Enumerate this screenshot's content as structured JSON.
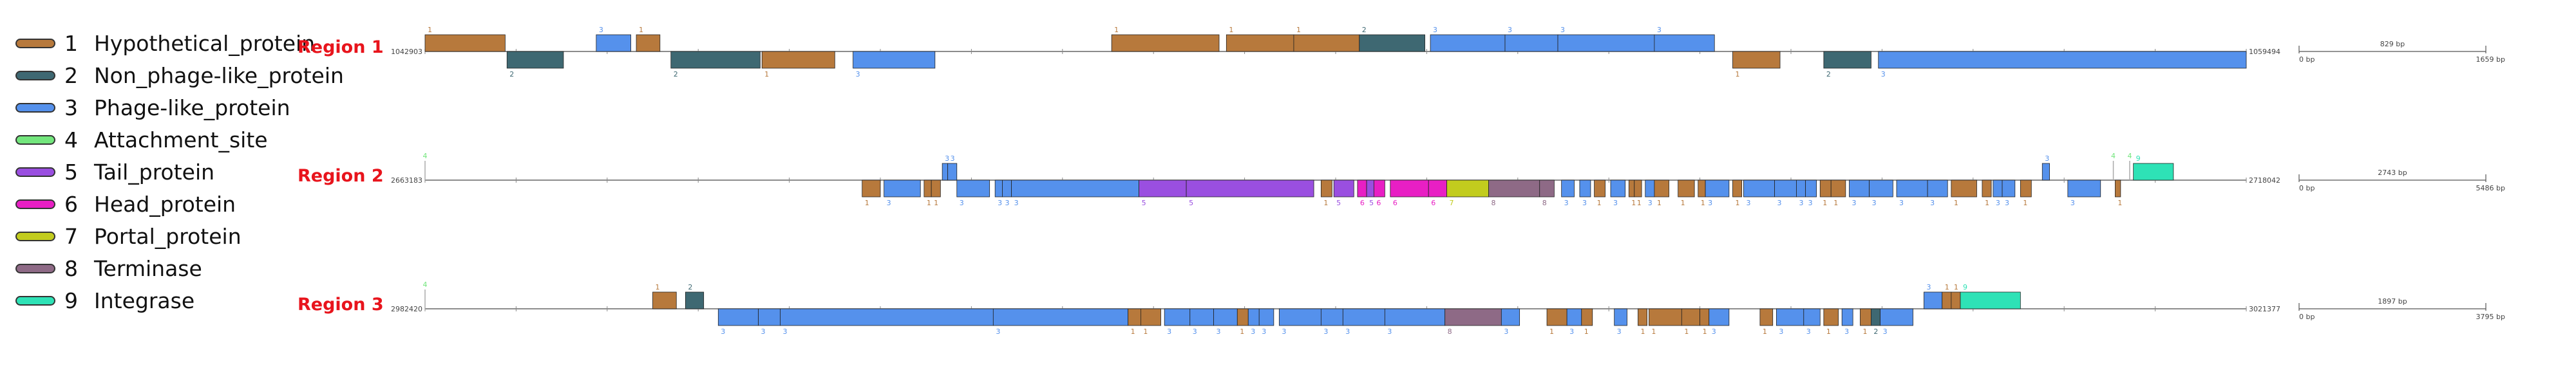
{
  "legend": [
    {
      "num": "1",
      "label": "Hypothetical_protein",
      "color": "#b7793c"
    },
    {
      "num": "2",
      "label": "Non_phage-like_protein",
      "color": "#3e6872"
    },
    {
      "num": "3",
      "label": "Phage-like_protein",
      "color": "#5591ec"
    },
    {
      "num": "4",
      "label": "Attachment_site",
      "color": "#73e67d"
    },
    {
      "num": "5",
      "label": "Tail_protein",
      "color": "#9a4fe0"
    },
    {
      "num": "6",
      "label": "Head_protein",
      "color": "#e81fc4"
    },
    {
      "num": "7",
      "label": "Portal_protein",
      "color": "#c2cc1e"
    },
    {
      "num": "8",
      "label": "Terminase",
      "color": "#8e6a86"
    },
    {
      "num": "9",
      "label": "Integrase",
      "color": "#2ee2b6"
    }
  ],
  "regions": [
    {
      "name": "Region 1",
      "start_label": "1042903",
      "end_label": "1059494",
      "scale_label": "829 bp",
      "scale_start": "0 bp",
      "scale_end": "1659 bp",
      "genes": [
        {
          "t": 1,
          "s": 0.0,
          "e": 0.044,
          "d": 1
        },
        {
          "t": 2,
          "s": 0.045,
          "e": 0.076,
          "d": -1
        },
        {
          "t": 3,
          "s": 0.094,
          "e": 0.113,
          "d": 1
        },
        {
          "t": 1,
          "s": 0.116,
          "e": 0.129,
          "d": 1
        },
        {
          "t": 2,
          "s": 0.135,
          "e": 0.184,
          "d": -1
        },
        {
          "t": 1,
          "s": 0.185,
          "e": 0.225,
          "d": -1
        },
        {
          "t": 3,
          "s": 0.235,
          "e": 0.28,
          "d": -1
        },
        {
          "t": 1,
          "s": 0.377,
          "e": 0.436,
          "d": 1
        },
        {
          "t": 1,
          "s": 0.44,
          "e": 0.477,
          "d": 1
        },
        {
          "t": 1,
          "s": 0.477,
          "e": 0.513,
          "d": 1
        },
        {
          "t": 2,
          "s": 0.513,
          "e": 0.549,
          "d": 1
        },
        {
          "t": 3,
          "s": 0.552,
          "e": 0.593,
          "d": 1
        },
        {
          "t": 3,
          "s": 0.593,
          "e": 0.622,
          "d": 1
        },
        {
          "t": 3,
          "s": 0.622,
          "e": 0.675,
          "d": 1
        },
        {
          "t": 3,
          "s": 0.675,
          "e": 0.708,
          "d": 1
        },
        {
          "t": 1,
          "s": 0.718,
          "e": 0.744,
          "d": -1
        },
        {
          "t": 2,
          "s": 0.768,
          "e": 0.794,
          "d": -1
        },
        {
          "t": 3,
          "s": 0.798,
          "e": 1.0,
          "d": -1
        }
      ]
    },
    {
      "name": "Region 2",
      "start_label": "2663183",
      "end_label": "2718042",
      "scale_label": "2743 bp",
      "scale_start": "0 bp",
      "scale_end": "5486 bp",
      "genes": [
        {
          "t": 4,
          "s": 0.0,
          "e": 0.001,
          "d": 1
        },
        {
          "t": 1,
          "s": 0.24,
          "e": 0.25,
          "d": -1
        },
        {
          "t": 3,
          "s": 0.252,
          "e": 0.272,
          "d": -1
        },
        {
          "t": 1,
          "s": 0.274,
          "e": 0.278,
          "d": -1
        },
        {
          "t": 1,
          "s": 0.278,
          "e": 0.283,
          "d": -1
        },
        {
          "t": 3,
          "s": 0.284,
          "e": 0.287,
          "d": 1
        },
        {
          "t": 3,
          "s": 0.287,
          "e": 0.292,
          "d": 1
        },
        {
          "t": 3,
          "s": 0.292,
          "e": 0.31,
          "d": -1
        },
        {
          "t": 3,
          "s": 0.313,
          "e": 0.317,
          "d": -1
        },
        {
          "t": 3,
          "s": 0.317,
          "e": 0.322,
          "d": -1
        },
        {
          "t": 3,
          "s": 0.322,
          "e": 0.392,
          "d": -1
        },
        {
          "t": 5,
          "s": 0.392,
          "e": 0.418,
          "d": -1
        },
        {
          "t": 5,
          "s": 0.418,
          "e": 0.488,
          "d": -1
        },
        {
          "t": 1,
          "s": 0.492,
          "e": 0.498,
          "d": -1
        },
        {
          "t": 5,
          "s": 0.499,
          "e": 0.51,
          "d": -1
        },
        {
          "t": 6,
          "s": 0.512,
          "e": 0.517,
          "d": -1
        },
        {
          "t": 5,
          "s": 0.517,
          "e": 0.521,
          "d": -1
        },
        {
          "t": 6,
          "s": 0.521,
          "e": 0.527,
          "d": -1
        },
        {
          "t": 6,
          "s": 0.53,
          "e": 0.551,
          "d": -1
        },
        {
          "t": 6,
          "s": 0.551,
          "e": 0.561,
          "d": -1
        },
        {
          "t": 7,
          "s": 0.561,
          "e": 0.584,
          "d": -1
        },
        {
          "t": 8,
          "s": 0.584,
          "e": 0.612,
          "d": -1
        },
        {
          "t": 8,
          "s": 0.612,
          "e": 0.62,
          "d": -1
        },
        {
          "t": 3,
          "s": 0.624,
          "e": 0.631,
          "d": -1
        },
        {
          "t": 3,
          "s": 0.634,
          "e": 0.64,
          "d": -1
        },
        {
          "t": 1,
          "s": 0.642,
          "e": 0.648,
          "d": -1
        },
        {
          "t": 3,
          "s": 0.651,
          "e": 0.659,
          "d": -1
        },
        {
          "t": 1,
          "s": 0.661,
          "e": 0.664,
          "d": -1
        },
        {
          "t": 1,
          "s": 0.664,
          "e": 0.668,
          "d": -1
        },
        {
          "t": 3,
          "s": 0.67,
          "e": 0.675,
          "d": -1
        },
        {
          "t": 1,
          "s": 0.675,
          "e": 0.683,
          "d": -1
        },
        {
          "t": 1,
          "s": 0.688,
          "e": 0.697,
          "d": -1
        },
        {
          "t": 1,
          "s": 0.699,
          "e": 0.703,
          "d": -1
        },
        {
          "t": 3,
          "s": 0.703,
          "e": 0.716,
          "d": -1
        },
        {
          "t": 1,
          "s": 0.718,
          "e": 0.723,
          "d": -1
        },
        {
          "t": 3,
          "s": 0.724,
          "e": 0.741,
          "d": -1
        },
        {
          "t": 3,
          "s": 0.741,
          "e": 0.753,
          "d": -1
        },
        {
          "t": 3,
          "s": 0.753,
          "e": 0.758,
          "d": -1
        },
        {
          "t": 3,
          "s": 0.758,
          "e": 0.764,
          "d": -1
        },
        {
          "t": 1,
          "s": 0.766,
          "e": 0.772,
          "d": -1
        },
        {
          "t": 1,
          "s": 0.772,
          "e": 0.78,
          "d": -1
        },
        {
          "t": 3,
          "s": 0.782,
          "e": 0.793,
          "d": -1
        },
        {
          "t": 3,
          "s": 0.793,
          "e": 0.806,
          "d": -1
        },
        {
          "t": 3,
          "s": 0.808,
          "e": 0.825,
          "d": -1
        },
        {
          "t": 3,
          "s": 0.825,
          "e": 0.836,
          "d": -1
        },
        {
          "t": 1,
          "s": 0.838,
          "e": 0.852,
          "d": -1
        },
        {
          "t": 1,
          "s": 0.855,
          "e": 0.86,
          "d": -1
        },
        {
          "t": 3,
          "s": 0.861,
          "e": 0.866,
          "d": -1
        },
        {
          "t": 3,
          "s": 0.866,
          "e": 0.873,
          "d": -1
        },
        {
          "t": 1,
          "s": 0.876,
          "e": 0.882,
          "d": -1
        },
        {
          "t": 3,
          "s": 0.888,
          "e": 0.892,
          "d": 1
        },
        {
          "t": 3,
          "s": 0.902,
          "e": 0.92,
          "d": -1
        },
        {
          "t": 4,
          "s": 0.927,
          "e": 0.928,
          "d": 1
        },
        {
          "t": 1,
          "s": 0.928,
          "e": 0.931,
          "d": -1
        },
        {
          "t": 4,
          "s": 0.936,
          "e": 0.937,
          "d": 1
        },
        {
          "t": 9,
          "s": 0.938,
          "e": 0.96,
          "d": 1
        }
      ]
    },
    {
      "name": "Region 3",
      "start_label": "2982420",
      "end_label": "3021377",
      "scale_label": "1897 bp",
      "scale_start": "0 bp",
      "scale_end": "3795 bp",
      "genes": [
        {
          "t": 4,
          "s": 0.0,
          "e": 0.001,
          "d": 1
        },
        {
          "t": 1,
          "s": 0.125,
          "e": 0.138,
          "d": 1
        },
        {
          "t": 2,
          "s": 0.143,
          "e": 0.153,
          "d": 1
        },
        {
          "t": 3,
          "s": 0.161,
          "e": 0.183,
          "d": -1
        },
        {
          "t": 3,
          "s": 0.183,
          "e": 0.195,
          "d": -1
        },
        {
          "t": 3,
          "s": 0.195,
          "e": 0.312,
          "d": -1
        },
        {
          "t": 3,
          "s": 0.312,
          "e": 0.386,
          "d": -1
        },
        {
          "t": 1,
          "s": 0.386,
          "e": 0.393,
          "d": -1
        },
        {
          "t": 1,
          "s": 0.393,
          "e": 0.404,
          "d": -1
        },
        {
          "t": 3,
          "s": 0.406,
          "e": 0.42,
          "d": -1
        },
        {
          "t": 3,
          "s": 0.42,
          "e": 0.433,
          "d": -1
        },
        {
          "t": 3,
          "s": 0.433,
          "e": 0.446,
          "d": -1
        },
        {
          "t": 1,
          "s": 0.446,
          "e": 0.452,
          "d": -1
        },
        {
          "t": 3,
          "s": 0.452,
          "e": 0.458,
          "d": -1
        },
        {
          "t": 3,
          "s": 0.458,
          "e": 0.466,
          "d": -1
        },
        {
          "t": 3,
          "s": 0.469,
          "e": 0.492,
          "d": -1
        },
        {
          "t": 3,
          "s": 0.492,
          "e": 0.504,
          "d": -1
        },
        {
          "t": 3,
          "s": 0.504,
          "e": 0.527,
          "d": -1
        },
        {
          "t": 3,
          "s": 0.527,
          "e": 0.56,
          "d": -1
        },
        {
          "t": 8,
          "s": 0.56,
          "e": 0.591,
          "d": -1
        },
        {
          "t": 3,
          "s": 0.591,
          "e": 0.601,
          "d": -1
        },
        {
          "t": 1,
          "s": 0.616,
          "e": 0.627,
          "d": -1
        },
        {
          "t": 3,
          "s": 0.627,
          "e": 0.635,
          "d": -1
        },
        {
          "t": 1,
          "s": 0.635,
          "e": 0.641,
          "d": -1
        },
        {
          "t": 3,
          "s": 0.653,
          "e": 0.66,
          "d": -1
        },
        {
          "t": 1,
          "s": 0.666,
          "e": 0.671,
          "d": -1
        },
        {
          "t": 1,
          "s": 0.672,
          "e": 0.69,
          "d": -1
        },
        {
          "t": 1,
          "s": 0.69,
          "e": 0.7,
          "d": -1
        },
        {
          "t": 1,
          "s": 0.7,
          "e": 0.705,
          "d": -1
        },
        {
          "t": 3,
          "s": 0.705,
          "e": 0.716,
          "d": -1
        },
        {
          "t": 1,
          "s": 0.733,
          "e": 0.74,
          "d": -1
        },
        {
          "t": 3,
          "s": 0.742,
          "e": 0.757,
          "d": -1
        },
        {
          "t": 3,
          "s": 0.757,
          "e": 0.766,
          "d": -1
        },
        {
          "t": 1,
          "s": 0.768,
          "e": 0.776,
          "d": -1
        },
        {
          "t": 3,
          "s": 0.778,
          "e": 0.784,
          "d": -1
        },
        {
          "t": 1,
          "s": 0.788,
          "e": 0.794,
          "d": -1
        },
        {
          "t": 2,
          "s": 0.794,
          "e": 0.799,
          "d": -1
        },
        {
          "t": 3,
          "s": 0.799,
          "e": 0.817,
          "d": -1
        },
        {
          "t": 3,
          "s": 0.823,
          "e": 0.833,
          "d": 1
        },
        {
          "t": 1,
          "s": 0.833,
          "e": 0.838,
          "d": 1
        },
        {
          "t": 1,
          "s": 0.838,
          "e": 0.843,
          "d": 1
        },
        {
          "t": 9,
          "s": 0.843,
          "e": 0.876,
          "d": 1
        }
      ]
    }
  ]
}
